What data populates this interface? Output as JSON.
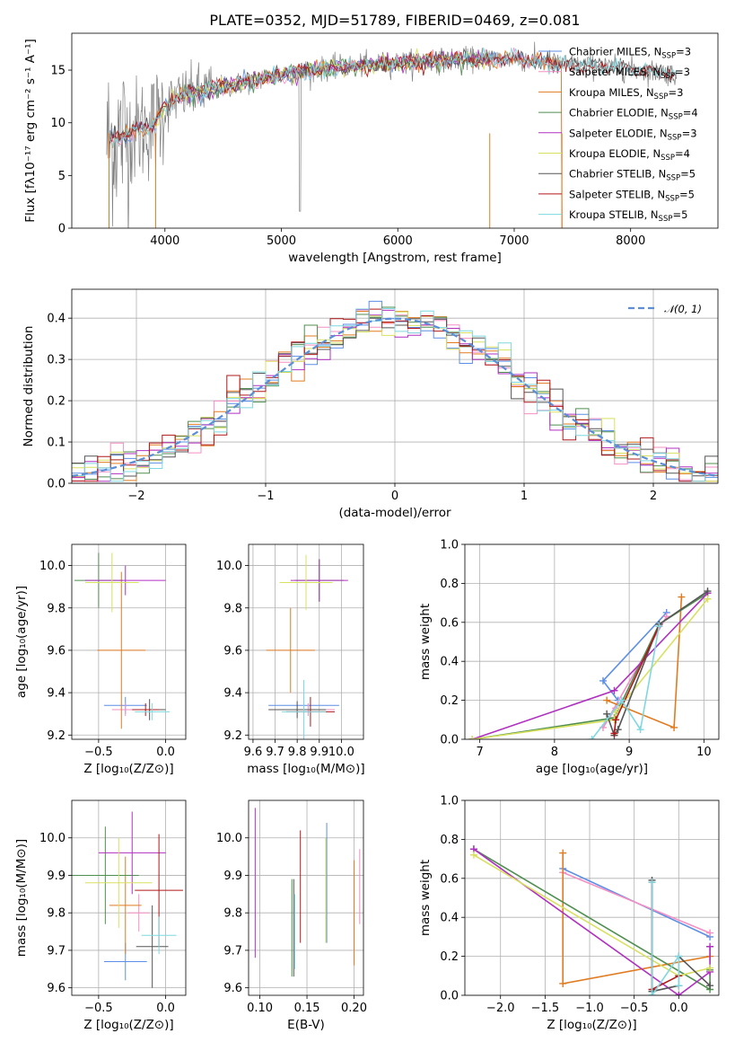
{
  "title": "PLATE=0352, MJD=51789, FIBERID=0469, z=0.081",
  "colors": {
    "chab_miles": "#5b8ee6",
    "salp_miles": "#f58fc4",
    "krou_miles": "#e07b20",
    "chab_elodie": "#4f8f4f",
    "salp_elodie": "#b030c0",
    "krou_elodie": "#d8e060",
    "chab_stelib": "#555555",
    "salp_stelib": "#b01818",
    "krou_stelib": "#7fd8e0",
    "data": "#808080",
    "gauss": "#5b8ed6",
    "grid": "#b0b0b0"
  },
  "legend": [
    {
      "key": "chab_miles",
      "label": "Chabrier MILES, N",
      "sub": "SSP",
      "tail": "=3"
    },
    {
      "key": "salp_miles",
      "label": "Salpeter MILES, N",
      "sub": "SSP",
      "tail": "=3"
    },
    {
      "key": "krou_miles",
      "label": "Kroupa MILES, N",
      "sub": "SSP",
      "tail": "=3"
    },
    {
      "key": "chab_elodie",
      "label": "Chabrier ELODIE, N",
      "sub": "SSP",
      "tail": "=4"
    },
    {
      "key": "salp_elodie",
      "label": "Salpeter ELODIE, N",
      "sub": "SSP",
      "tail": "=3"
    },
    {
      "key": "krou_elodie",
      "label": "Kroupa ELODIE, N",
      "sub": "SSP",
      "tail": "=4"
    },
    {
      "key": "chab_stelib",
      "label": "Chabrier STELIB, N",
      "sub": "SSP",
      "tail": "=5"
    },
    {
      "key": "salp_stelib",
      "label": "Salpeter STELIB, N",
      "sub": "SSP",
      "tail": "=5"
    },
    {
      "key": "krou_stelib",
      "label": "Kroupa STELIB, N",
      "sub": "SSP",
      "tail": "=5"
    }
  ],
  "chart_data": [
    {
      "id": "spectrum",
      "type": "line",
      "xlabel": "wavelength [Angstrom, rest frame]",
      "ylabel": "Flux [fλ10⁻¹⁷ erg cm⁻² s⁻¹ A⁻¹]",
      "xlim": [
        3200,
        8750
      ],
      "ylim": [
        0,
        18.5
      ],
      "xticks": [
        4000,
        5000,
        6000,
        7000,
        8000
      ],
      "yticks": [
        0,
        5,
        10,
        15
      ],
      "grid": false,
      "legend_position": "right",
      "continuum_points": {
        "x": [
          3500,
          3700,
          3900,
          4000,
          4100,
          4300,
          4600,
          5000,
          5500,
          6000,
          6500,
          7000,
          7500,
          8000,
          8400
        ],
        "y": [
          8.2,
          9.0,
          9.8,
          11.5,
          12.4,
          13.0,
          13.6,
          14.6,
          15.3,
          15.7,
          16.0,
          16.1,
          15.5,
          15.1,
          14.6
        ]
      }
    },
    {
      "id": "residuals",
      "type": "histogram",
      "xlabel": "(data-model)/error",
      "ylabel": "Normed distribution",
      "xlim": [
        -2.5,
        2.5
      ],
      "ylim": [
        0,
        0.47
      ],
      "xticks": [
        -2,
        -1,
        0,
        1,
        2
      ],
      "xticklabels": [
        "−2",
        "−1",
        "0",
        "1",
        "2"
      ],
      "yticks": [
        0.0,
        0.1,
        0.2,
        0.3,
        0.4
      ],
      "yticklabels": [
        "0.0",
        "0.1",
        "0.2",
        "0.3",
        "0.4"
      ],
      "grid": true,
      "legend": "𝒩(0, 1)",
      "legend_position": "top-right",
      "bin_width": 0.1
    },
    {
      "id": "age_Z",
      "type": "errorbar",
      "xlabel": "Z [log₁₀(Z/Z⊙)]",
      "ylabel": "age  [log₁₀(age/yr)]",
      "xlim": [
        -0.7,
        0.15
      ],
      "ylim": [
        9.18,
        10.1
      ],
      "xticks": [
        -0.5,
        0.0
      ],
      "xticklabels": [
        "−0.5",
        "0.0"
      ],
      "yticks": [
        9.2,
        9.4,
        9.6,
        9.8,
        10.0
      ],
      "yticklabels": [
        "9.2",
        "9.4",
        "9.6",
        "9.8",
        "10.0"
      ],
      "grid": true,
      "points": [
        {
          "c": "chab_miles",
          "x": -0.3,
          "xerr": 0.16,
          "y": 9.34,
          "yerr": 0.04
        },
        {
          "c": "salp_miles",
          "x": -0.3,
          "xerr": 0.1,
          "y": 9.32,
          "yerr": 0.03
        },
        {
          "c": "krou_miles",
          "x": -0.33,
          "xerr": 0.18,
          "y": 9.6,
          "yerr": 0.37
        },
        {
          "c": "chab_elodie",
          "x": -0.5,
          "xerr": 0.18,
          "y": 9.93,
          "yerr": 0.13
        },
        {
          "c": "salp_elodie",
          "x": -0.3,
          "xerr": 0.3,
          "y": 9.93,
          "yerr": 0.07
        },
        {
          "c": "krou_elodie",
          "x": -0.4,
          "xerr": 0.2,
          "y": 9.92,
          "yerr": 0.14
        },
        {
          "c": "chab_stelib",
          "x": -0.12,
          "xerr": 0.12,
          "y": 9.32,
          "yerr": 0.05
        },
        {
          "c": "salp_stelib",
          "x": -0.15,
          "xerr": 0.1,
          "y": 9.32,
          "yerr": 0.03
        },
        {
          "c": "krou_stelib",
          "x": -0.1,
          "xerr": 0.13,
          "y": 9.31,
          "yerr": 0.04
        }
      ]
    },
    {
      "id": "age_mass",
      "type": "errorbar",
      "xlabel": "mass [log₁₀(M/M⊙)]",
      "ylabel": "",
      "xlim": [
        9.58,
        10.1
      ],
      "ylim": [
        9.18,
        10.1
      ],
      "xticks": [
        9.6,
        9.7,
        9.8,
        9.9,
        10.0
      ],
      "xticklabels": [
        "9.6",
        "9.7",
        "9.8",
        "9.9",
        "10.0"
      ],
      "yticks": [
        9.2,
        9.4,
        9.6,
        9.8,
        10.0
      ],
      "yticklabels": [
        "9.2",
        "9.4",
        "9.6",
        "9.8",
        "10.0"
      ],
      "grid": true,
      "points": [
        {
          "c": "chab_miles",
          "x": 9.83,
          "xerr": 0.16,
          "y": 9.34,
          "yerr": 0.04
        },
        {
          "c": "salp_miles",
          "x": 9.85,
          "xerr": 0.12,
          "y": 9.32,
          "yerr": 0.03
        },
        {
          "c": "krou_miles",
          "x": 9.77,
          "xerr": 0.11,
          "y": 9.6,
          "yerr": 0.2
        },
        {
          "c": "chab_elodie",
          "x": 9.9,
          "xerr": 0.11,
          "y": 9.93,
          "yerr": 0.1
        },
        {
          "c": "salp_elodie",
          "x": 9.9,
          "xerr": 0.13,
          "y": 9.93,
          "yerr": 0.1
        },
        {
          "c": "krou_elodie",
          "x": 9.84,
          "xerr": 0.12,
          "y": 9.92,
          "yerr": 0.13
        },
        {
          "c": "chab_stelib",
          "x": 9.8,
          "xerr": 0.13,
          "y": 9.32,
          "yerr": 0.04
        },
        {
          "c": "salp_stelib",
          "x": 9.86,
          "xerr": 0.11,
          "y": 9.31,
          "yerr": 0.07
        },
        {
          "c": "krou_stelib",
          "x": 9.83,
          "xerr": 0.1,
          "y": 9.31,
          "yerr": 0.15
        }
      ]
    },
    {
      "id": "weight_age",
      "type": "line",
      "xlabel": "age  [log₁₀(age/yr)]",
      "ylabel": "mass weight",
      "xlim": [
        6.8,
        10.2
      ],
      "ylim": [
        0,
        1.0
      ],
      "xticks": [
        7,
        8,
        9,
        10
      ],
      "xticklabels": [
        "7",
        "8",
        "9",
        "10"
      ],
      "yticks": [
        0.0,
        0.2,
        0.4,
        0.6,
        0.8,
        1.0
      ],
      "yticklabels": [
        "0.0",
        "0.2",
        "0.4",
        "0.6",
        "0.8",
        "1.0"
      ],
      "grid": true,
      "series": [
        {
          "c": "chab_miles",
          "x": [
            8.85,
            8.65,
            9.5
          ],
          "y": [
            0.2,
            0.3,
            0.65
          ]
        },
        {
          "c": "salp_miles",
          "x": [
            8.82,
            8.65,
            9.5
          ],
          "y": [
            0.16,
            0.06,
            0.63
          ]
        },
        {
          "c": "krou_miles",
          "x": [
            8.7,
            9.6,
            9.7
          ],
          "y": [
            0.2,
            0.06,
            0.73
          ]
        },
        {
          "c": "chab_elodie",
          "x": [
            6.9,
            8.8,
            9.4,
            10.05
          ],
          "y": [
            0.0,
            0.11,
            0.59,
            0.75
          ]
        },
        {
          "c": "salp_elodie",
          "x": [
            6.9,
            8.8,
            10.05
          ],
          "y": [
            0.0,
            0.25,
            0.75
          ]
        },
        {
          "c": "krou_elodie",
          "x": [
            6.9,
            8.8,
            8.82,
            10.05
          ],
          "y": [
            0.0,
            0.1,
            0.14,
            0.72
          ]
        },
        {
          "c": "chab_stelib",
          "x": [
            8.7,
            8.8,
            8.85,
            9.4,
            10.05
          ],
          "y": [
            0.13,
            0.02,
            0.05,
            0.59,
            0.76
          ]
        },
        {
          "c": "salp_stelib",
          "x": [
            8.8,
            8.82,
            9.4
          ],
          "y": [
            0.03,
            0.1,
            0.58
          ]
        },
        {
          "c": "krou_stelib",
          "x": [
            8.5,
            8.9,
            9.15,
            9.4
          ],
          "y": [
            0.0,
            0.2,
            0.05,
            0.58
          ]
        }
      ]
    },
    {
      "id": "mass_Z",
      "type": "errorbar",
      "xlabel": "Z [log₁₀(Z/Z⊙)]",
      "ylabel": "mass [log₁₀(M/M⊙)]",
      "xlim": [
        -0.7,
        0.15
      ],
      "ylim": [
        9.58,
        10.1
      ],
      "xticks": [
        -0.5,
        0.0
      ],
      "xticklabels": [
        "−0.5",
        "0.0"
      ],
      "yticks": [
        9.6,
        9.7,
        9.8,
        9.9,
        10.0
      ],
      "yticklabels": [
        "9.6",
        "9.7",
        "9.8",
        "9.9",
        "10.0"
      ],
      "grid": true,
      "points": [
        {
          "c": "chab_miles",
          "x": -0.3,
          "xerr": 0.16,
          "y": 9.67,
          "yerr": 0.05
        },
        {
          "c": "salp_miles",
          "x": -0.2,
          "xerr": 0.08,
          "y": 9.8,
          "yerr": 0.05
        },
        {
          "c": "krou_miles",
          "x": -0.3,
          "xerr": 0.12,
          "y": 9.82,
          "yerr": 0.13
        },
        {
          "c": "chab_elodie",
          "x": -0.45,
          "xerr": 0.25,
          "y": 9.9,
          "yerr": 0.13
        },
        {
          "c": "salp_elodie",
          "x": -0.25,
          "xerr": 0.25,
          "y": 9.96,
          "yerr": 0.11
        },
        {
          "c": "krou_elodie",
          "x": -0.35,
          "xerr": 0.25,
          "y": 9.88,
          "yerr": 0.12
        },
        {
          "c": "chab_stelib",
          "x": -0.1,
          "xerr": 0.12,
          "y": 9.71,
          "yerr": 0.11
        },
        {
          "c": "salp_stelib",
          "x": -0.05,
          "xerr": 0.18,
          "y": 9.86,
          "yerr": 0.15
        },
        {
          "c": "krou_stelib",
          "x": -0.05,
          "xerr": 0.13,
          "y": 9.74,
          "yerr": 0.05
        }
      ]
    },
    {
      "id": "mass_ebv",
      "type": "errorbar",
      "xlabel": "E(B-V)",
      "ylabel": "",
      "xlim": [
        0.088,
        0.21
      ],
      "ylim": [
        9.58,
        10.1
      ],
      "xticks": [
        0.1,
        0.15,
        0.2
      ],
      "xticklabels": [
        "0.10",
        "0.15",
        "0.20"
      ],
      "yticks": [
        9.6,
        9.7,
        9.8,
        9.9,
        10.0
      ],
      "yticklabels": [
        "9.6",
        "9.7",
        "9.8",
        "9.9",
        "10.0"
      ],
      "grid": true,
      "points": [
        {
          "c": "chab_elodie",
          "x": 0.134,
          "xerr": 0,
          "y": 9.76,
          "yerr": 0.13
        },
        {
          "c": "salp_elodie",
          "x": 0.095,
          "xerr": 0,
          "y": 9.88,
          "yerr": 0.2
        },
        {
          "c": "krou_elodie",
          "x": 0.17,
          "xerr": 0,
          "y": 9.86,
          "yerr": 0.14
        },
        {
          "c": "chab_stelib",
          "x": 0.136,
          "xerr": 0,
          "y": 9.76,
          "yerr": 0.13
        },
        {
          "c": "salp_stelib",
          "x": 0.143,
          "xerr": 0,
          "y": 9.87,
          "yerr": 0.15
        },
        {
          "c": "krou_stelib",
          "x": 0.137,
          "xerr": 0,
          "y": 9.75,
          "yerr": 0.1
        },
        {
          "c": "chab_miles",
          "x": 0.171,
          "xerr": 0,
          "y": 9.88,
          "yerr": 0.16
        },
        {
          "c": "krou_miles",
          "x": 0.2,
          "xerr": 0,
          "y": 9.8,
          "yerr": 0.14
        },
        {
          "c": "salp_miles",
          "x": 0.206,
          "xerr": 0,
          "y": 9.87,
          "yerr": 0.1
        }
      ]
    },
    {
      "id": "weight_Z",
      "type": "line",
      "xlabel": "Z [log₁₀(Z/Z⊙)]",
      "ylabel": "mass weight",
      "xlim": [
        -2.4,
        0.45
      ],
      "ylim": [
        0,
        1.0
      ],
      "xticks": [
        -2.0,
        -1.5,
        -1.0,
        -0.5,
        0.0
      ],
      "xticklabels": [
        "−2.0",
        "−1.5",
        "−1.0",
        "−0.5",
        "0.0"
      ],
      "yticks": [
        0.0,
        0.2,
        0.4,
        0.6,
        0.8,
        1.0
      ],
      "yticklabels": [
        "0.0",
        "0.2",
        "0.4",
        "0.6",
        "0.8",
        "1.0"
      ],
      "grid": true,
      "series": [
        {
          "c": "chab_miles",
          "x": [
            -1.3,
            0.35
          ],
          "y": [
            0.65,
            0.3
          ]
        },
        {
          "c": "salp_miles",
          "x": [
            -1.3,
            0.35
          ],
          "y": [
            0.63,
            0.32
          ]
        },
        {
          "c": "krou_miles",
          "x": [
            -1.3,
            -1.3,
            0.35
          ],
          "y": [
            0.73,
            0.06,
            0.2
          ]
        },
        {
          "c": "chab_elodie",
          "x": [
            -2.3,
            0.35,
            0.35
          ],
          "y": [
            0.75,
            0.03,
            0.13
          ]
        },
        {
          "c": "salp_elodie",
          "x": [
            -2.3,
            0.0,
            0.35,
            0.35
          ],
          "y": [
            0.75,
            0.0,
            0.12,
            0.25
          ]
        },
        {
          "c": "krou_elodie",
          "x": [
            -2.3,
            0.0,
            0.35
          ],
          "y": [
            0.72,
            0.1,
            0.14
          ]
        },
        {
          "c": "chab_stelib",
          "x": [
            -0.3,
            -0.3,
            0.0,
            0.0,
            0.35
          ],
          "y": [
            0.59,
            0.02,
            0.05,
            0.2,
            0.05
          ]
        },
        {
          "c": "salp_stelib",
          "x": [
            -0.3,
            -0.3,
            0.0
          ],
          "y": [
            0.58,
            0.03,
            0.1
          ]
        },
        {
          "c": "krou_stelib",
          "x": [
            -0.3,
            -0.3,
            0.0,
            0.0
          ],
          "y": [
            0.58,
            0.0,
            0.2,
            0.05
          ]
        }
      ]
    }
  ]
}
